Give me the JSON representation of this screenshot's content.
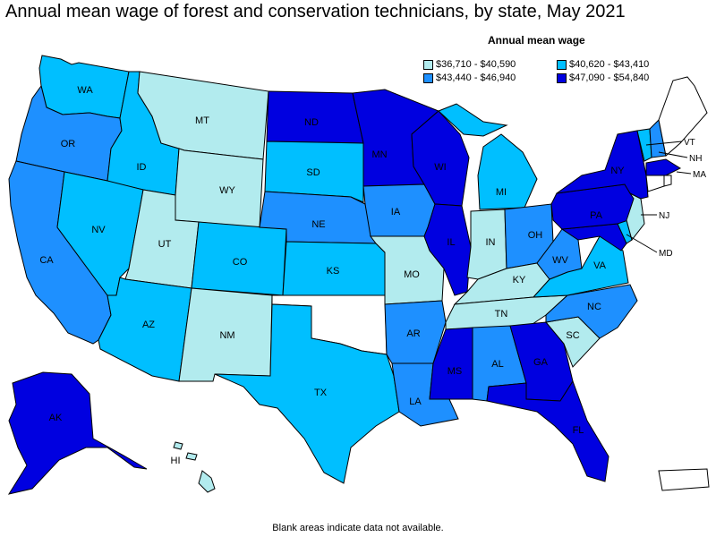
{
  "title": "Annual mean wage of forest and conservation technicians, by state, May 2021",
  "legend": {
    "title": "Annual mean wage",
    "items": [
      {
        "label": "$36,710 - $40,590",
        "color": "#b2ebee"
      },
      {
        "label": "$40,620 - $43,410",
        "color": "#00bfff"
      },
      {
        "label": "$43,440 - $46,940",
        "color": "#1e90ff"
      },
      {
        "label": "$47,090 - $54,840",
        "color": "#0000e0"
      }
    ]
  },
  "footnote": "Blank areas indicate data not available.",
  "colors": {
    "c1": "#b2ebee",
    "c2": "#00bfff",
    "c3": "#1e90ff",
    "c4": "#0000e0",
    "none": "#ffffff"
  },
  "states": {
    "WA": {
      "label": "WA",
      "bin": "c2"
    },
    "OR": {
      "label": "OR",
      "bin": "c3"
    },
    "CA": {
      "label": "CA",
      "bin": "c3"
    },
    "ID": {
      "label": "ID",
      "bin": "c2"
    },
    "NV": {
      "label": "NV",
      "bin": "c2"
    },
    "MT": {
      "label": "MT",
      "bin": "c1"
    },
    "WY": {
      "label": "WY",
      "bin": "c1"
    },
    "UT": {
      "label": "UT",
      "bin": "c1"
    },
    "AZ": {
      "label": "AZ",
      "bin": "c2"
    },
    "CO": {
      "label": "CO",
      "bin": "c2"
    },
    "NM": {
      "label": "NM",
      "bin": "c1"
    },
    "ND": {
      "label": "ND",
      "bin": "c4"
    },
    "SD": {
      "label": "SD",
      "bin": "c2"
    },
    "NE": {
      "label": "NE",
      "bin": "c3"
    },
    "KS": {
      "label": "KS",
      "bin": "c2"
    },
    "OK": {
      "label": "",
      "bin": "none"
    },
    "TX": {
      "label": "TX",
      "bin": "c2"
    },
    "MN": {
      "label": "MN",
      "bin": "c4"
    },
    "IA": {
      "label": "IA",
      "bin": "c3"
    },
    "MO": {
      "label": "MO",
      "bin": "c1"
    },
    "AR": {
      "label": "AR",
      "bin": "c3"
    },
    "LA": {
      "label": "LA",
      "bin": "c3"
    },
    "WI": {
      "label": "WI",
      "bin": "c4"
    },
    "IL": {
      "label": "IL",
      "bin": "c4"
    },
    "MI": {
      "label": "MI",
      "bin": "c2"
    },
    "IN": {
      "label": "IN",
      "bin": "c1"
    },
    "OH": {
      "label": "OH",
      "bin": "c3"
    },
    "KY": {
      "label": "KY",
      "bin": "c1"
    },
    "TN": {
      "label": "TN",
      "bin": "c1"
    },
    "MS": {
      "label": "MS",
      "bin": "c4"
    },
    "AL": {
      "label": "AL",
      "bin": "c3"
    },
    "GA": {
      "label": "GA",
      "bin": "c4"
    },
    "FL": {
      "label": "FL",
      "bin": "c4"
    },
    "SC": {
      "label": "SC",
      "bin": "c1"
    },
    "NC": {
      "label": "NC",
      "bin": "c3"
    },
    "VA": {
      "label": "VA",
      "bin": "c2"
    },
    "WV": {
      "label": "WV",
      "bin": "c3"
    },
    "PA": {
      "label": "PA",
      "bin": "c4"
    },
    "NY": {
      "label": "NY",
      "bin": "c4"
    },
    "VT": {
      "label": "VT",
      "bin": "c2"
    },
    "NH": {
      "label": "NH",
      "bin": "c3"
    },
    "ME": {
      "label": "",
      "bin": "none"
    },
    "MA": {
      "label": "MA",
      "bin": "c4"
    },
    "RI": {
      "label": "",
      "bin": "none"
    },
    "CT": {
      "label": "",
      "bin": "none"
    },
    "NJ": {
      "label": "NJ",
      "bin": "c1"
    },
    "DE": {
      "label": "",
      "bin": "c2"
    },
    "MD": {
      "label": "MD",
      "bin": "c4"
    },
    "AK": {
      "label": "AK",
      "bin": "c4"
    },
    "HI": {
      "label": "HI",
      "bin": "c1"
    },
    "PR": {
      "label": "",
      "bin": "none"
    }
  }
}
